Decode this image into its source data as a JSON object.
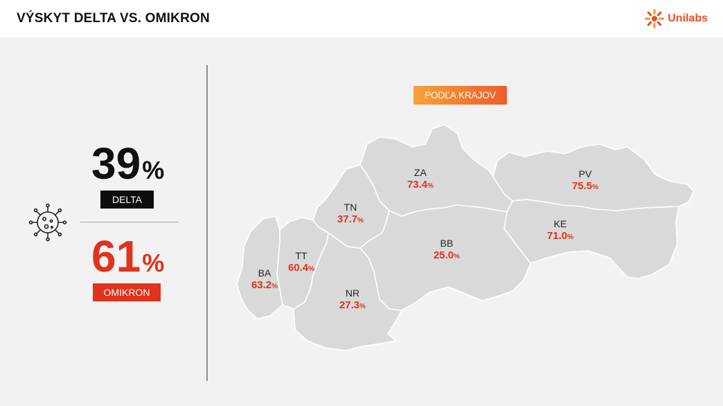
{
  "header": {
    "title": "VÝSKYT DELTA VS. OMIKRON",
    "logo_text": "Unilabs",
    "logo_color": "#e8502a"
  },
  "icons": {
    "virus": "virus-icon",
    "logo": "unilabs-sun-icon"
  },
  "summary": {
    "delta": {
      "value": "39",
      "unit": "%",
      "label": "DELTA",
      "color": "#111111"
    },
    "omikron": {
      "value": "61",
      "unit": "%",
      "label": "OMIKRON",
      "color": "#e0321c"
    }
  },
  "map": {
    "badge": "PODĽA KRAJOV",
    "fill_color": "#d9d9da",
    "border_color": "#ffffff",
    "regions": [
      {
        "code": "ZA",
        "value": "73.4",
        "unit": "%"
      },
      {
        "code": "PV",
        "value": "75.5",
        "unit": "%"
      },
      {
        "code": "TN",
        "value": "37.7",
        "unit": "%"
      },
      {
        "code": "KE",
        "value": "71.0",
        "unit": "%"
      },
      {
        "code": "BB",
        "value": "25.0",
        "unit": "%"
      },
      {
        "code": "TT",
        "value": "60.4",
        "unit": "%"
      },
      {
        "code": "BA",
        "value": "63.2",
        "unit": "%"
      },
      {
        "code": "NR",
        "value": "27.3",
        "unit": "%"
      }
    ]
  }
}
